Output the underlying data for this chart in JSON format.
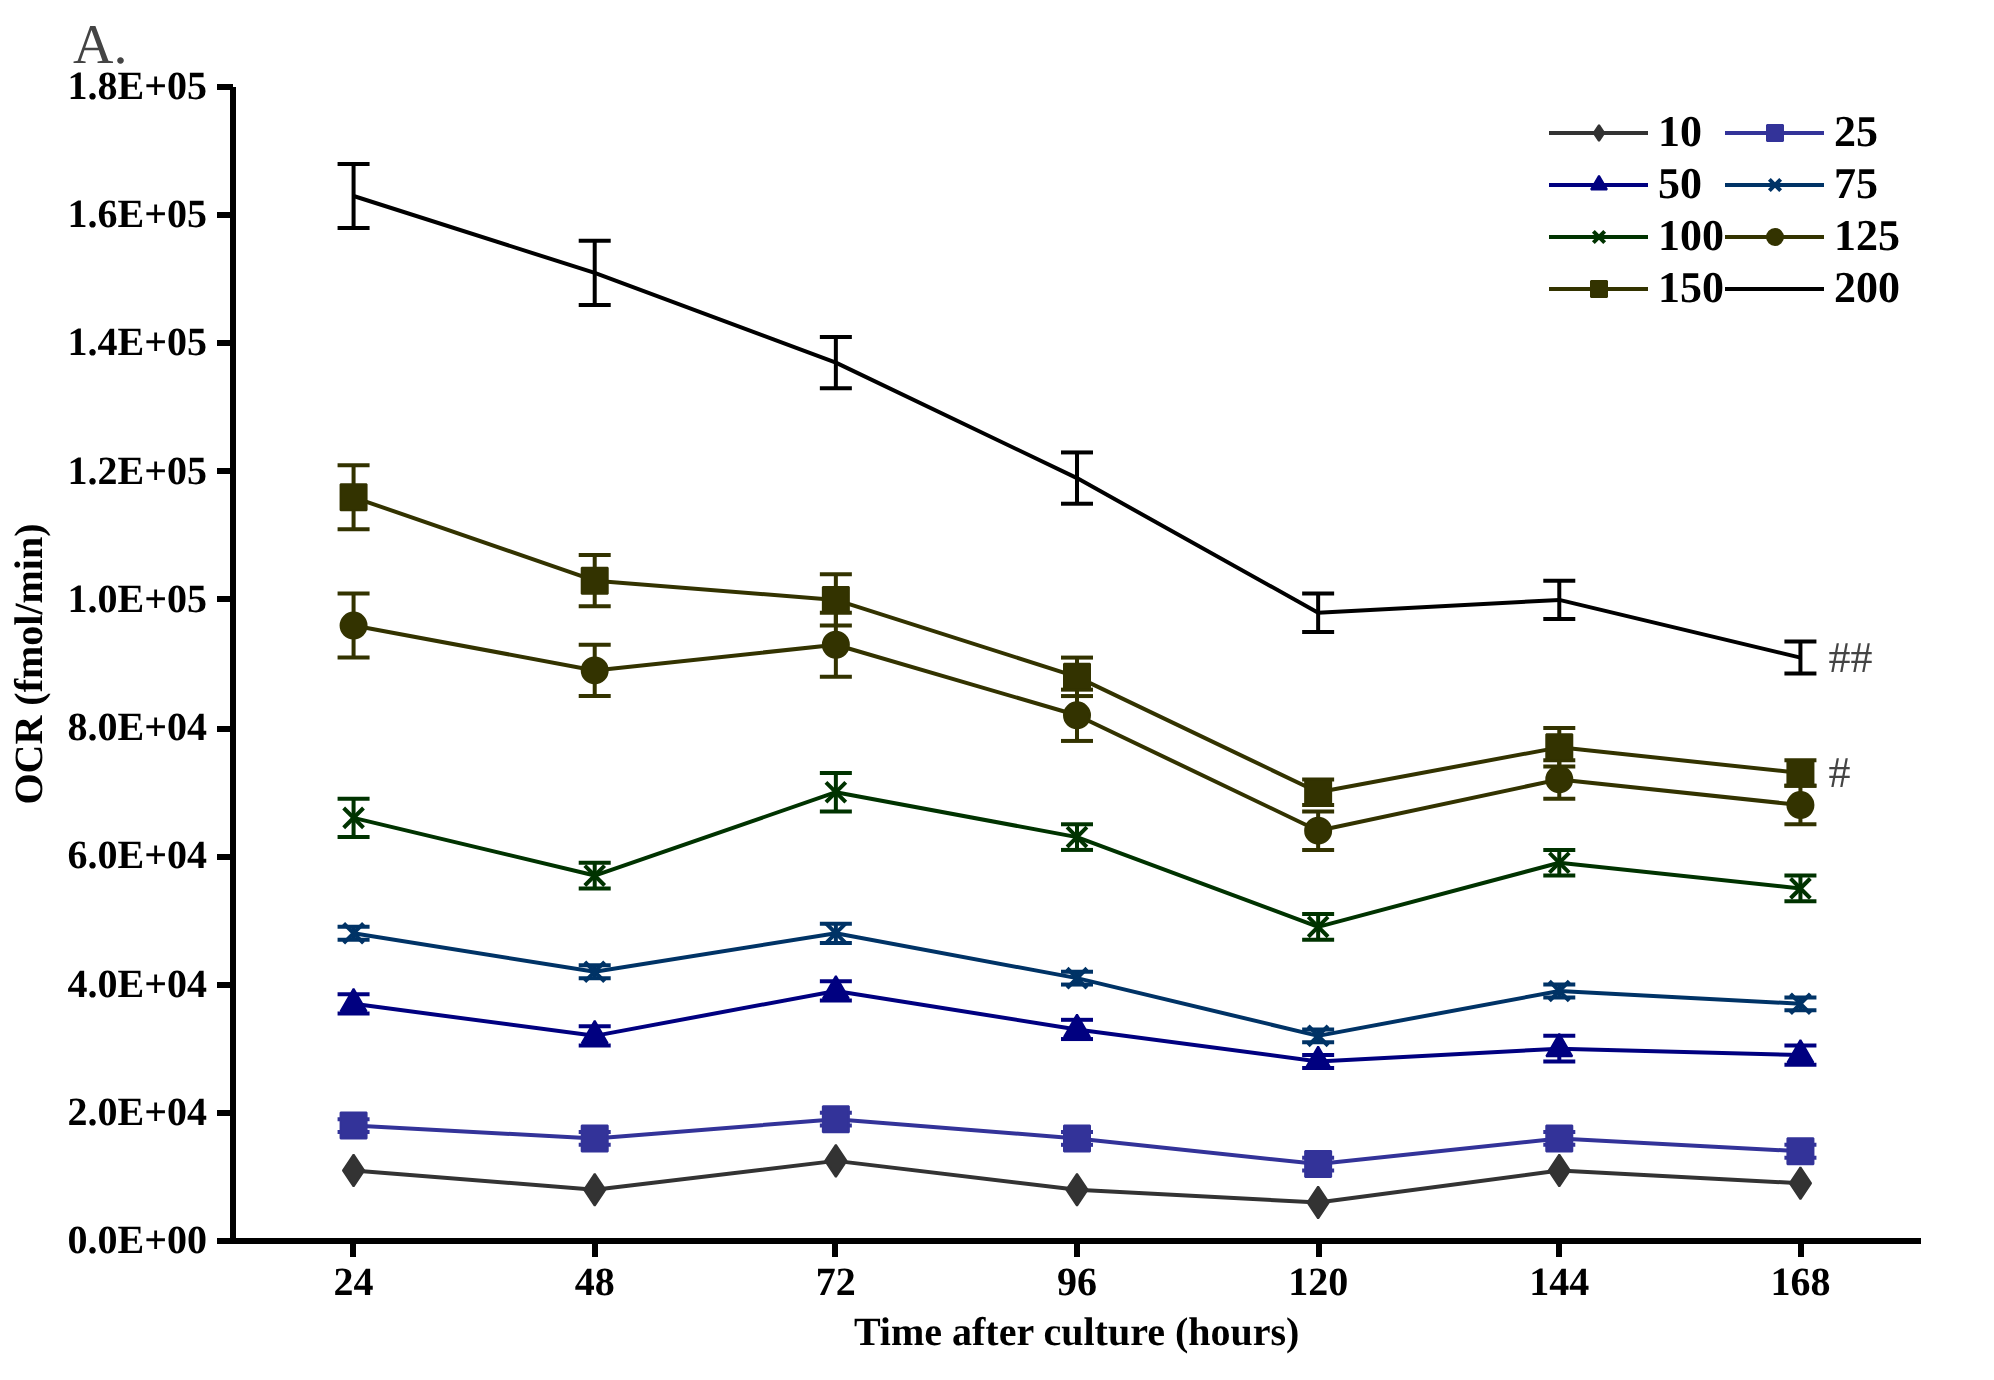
{
  "chart_data": {
    "type": "line",
    "xlabel": "Time after culture (hours)",
    "ylabel": "OCR (fmol/min)",
    "categories": [
      "24",
      "48",
      "72",
      "96",
      "120",
      "144",
      "168"
    ],
    "ylim": [
      0,
      180000
    ],
    "yticks": [
      {
        "value": 0,
        "label": "0.0E+00"
      },
      {
        "value": 20000,
        "label": "2.0E+04"
      },
      {
        "value": 40000,
        "label": "4.0E+04"
      },
      {
        "value": 60000,
        "label": "6.0E+04"
      },
      {
        "value": 80000,
        "label": "8.0E+04"
      },
      {
        "value": 100000,
        "label": "1.0E+05"
      },
      {
        "value": 120000,
        "label": "1.2E+05"
      },
      {
        "value": 140000,
        "label": "1.4E+05"
      },
      {
        "value": 160000,
        "label": "1.6E+05"
      },
      {
        "value": 180000,
        "label": "1.8E+05"
      }
    ],
    "grid": false,
    "legend": "top right",
    "line_style": "solid",
    "series": [
      {
        "name": "10",
        "color": "#333333",
        "marker": "diamond",
        "values": [
          11000,
          8000,
          12500,
          8000,
          6000,
          11000,
          9000
        ]
      },
      {
        "name": "25",
        "color": "#333399",
        "marker": "square",
        "values": [
          18000,
          16000,
          19000,
          16000,
          12000,
          16000,
          14000
        ],
        "errors": [
          1000,
          1000,
          1000,
          1000,
          1000,
          1000,
          1000
        ]
      },
      {
        "name": "50",
        "color": "#000080",
        "marker": "triangle",
        "values": [
          37000,
          32000,
          39000,
          33000,
          28000,
          30000,
          29000
        ],
        "errors": [
          1500,
          1500,
          1500,
          1500,
          1000,
          2000,
          1500
        ]
      },
      {
        "name": "75",
        "color": "#003366",
        "marker": "cross",
        "values": [
          48000,
          42000,
          48000,
          41000,
          32000,
          39000,
          37000
        ],
        "errors": [
          1000,
          1000,
          1500,
          1000,
          1000,
          1000,
          1000
        ]
      },
      {
        "name": "100",
        "color": "#003300",
        "marker": "cross",
        "values": [
          66000,
          57000,
          70000,
          63000,
          49000,
          59000,
          55000
        ],
        "errors": [
          3000,
          2000,
          3000,
          2000,
          2000,
          2000,
          2000
        ]
      },
      {
        "name": "125",
        "color": "#333300",
        "marker": "circle",
        "values": [
          96000,
          89000,
          93000,
          82000,
          64000,
          72000,
          68000
        ],
        "errors": [
          5000,
          4000,
          5000,
          4000,
          3000,
          3000,
          3000
        ]
      },
      {
        "name": "150",
        "color": "#333300",
        "marker": "square",
        "values": [
          116000,
          103000,
          100000,
          88000,
          70000,
          77000,
          73000
        ],
        "errors": [
          5000,
          4000,
          4000,
          3000,
          2000,
          3000,
          2000
        ]
      },
      {
        "name": "200",
        "color": "#000000",
        "values": [
          163000,
          151000,
          137000,
          119000,
          98000,
          100000,
          91000
        ],
        "errors": [
          5000,
          5000,
          4000,
          4000,
          3000,
          3000,
          2500
        ]
      }
    ],
    "annotations": [
      "A.",
      {
        "text": "##",
        "x": "168",
        "y": 91000
      },
      {
        "text": "#",
        "x": "168",
        "y": 73000
      }
    ]
  }
}
